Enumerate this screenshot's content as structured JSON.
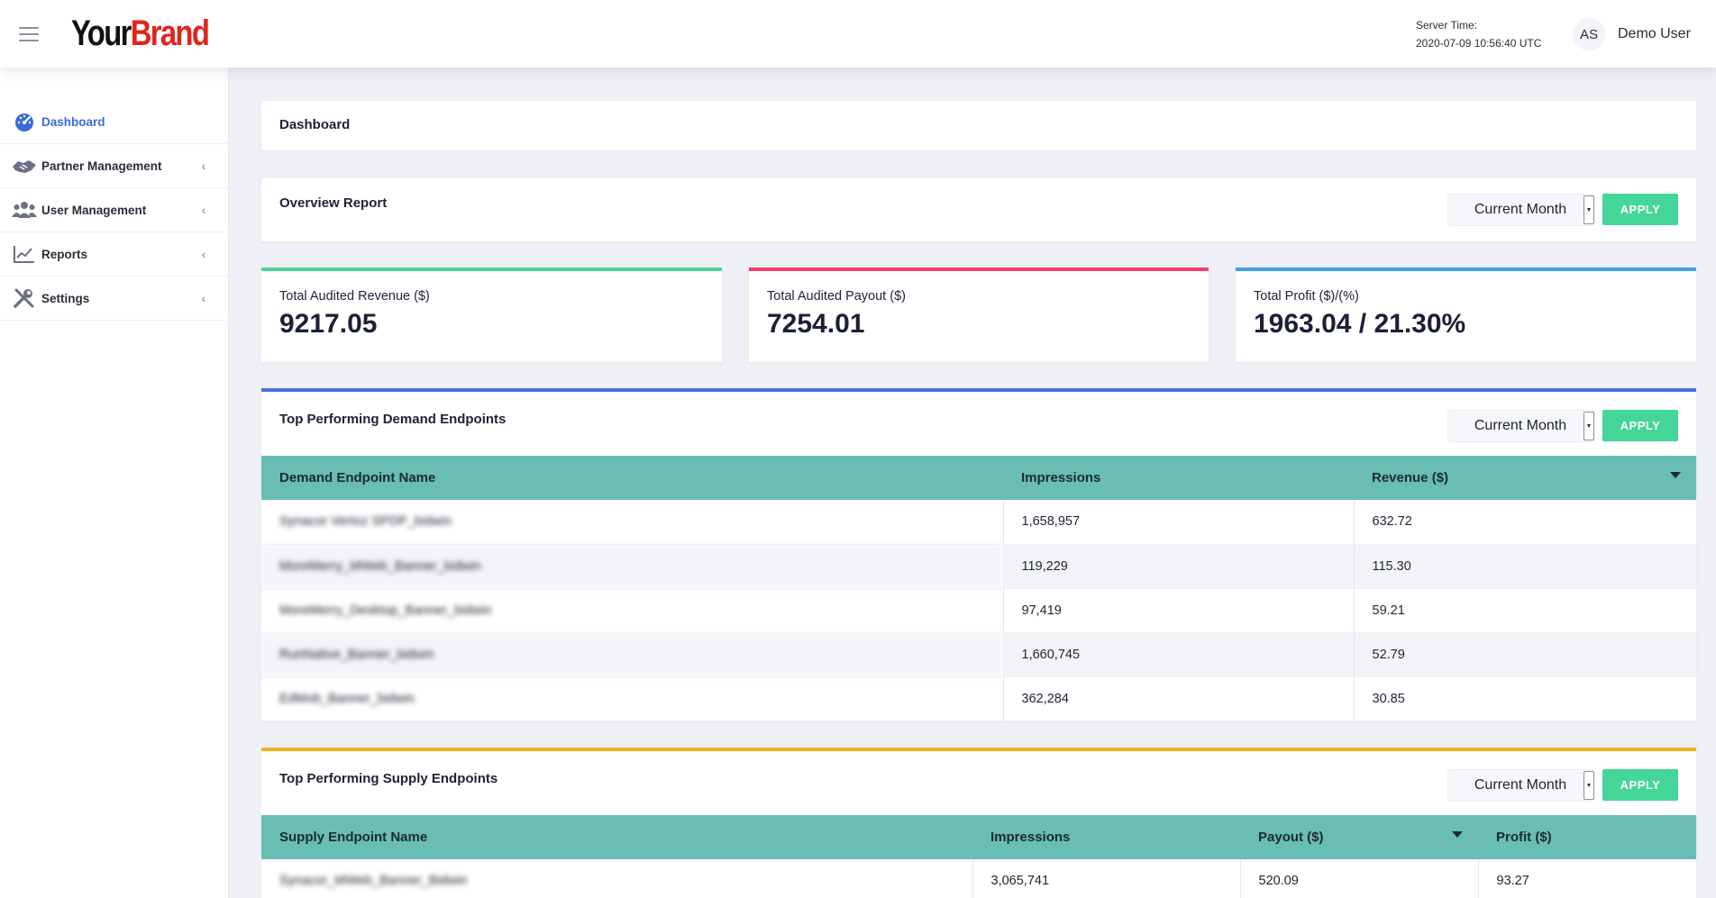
{
  "header": {
    "brand_part1": "Your",
    "brand_part2": "Brand",
    "server_time_label": "Server Time:",
    "server_time_value": "2020-07-09 10:56:40 UTC",
    "avatar_initials": "AS",
    "user_name": "Demo User"
  },
  "sidebar": {
    "items": [
      {
        "label": "Dashboard",
        "icon": "dashboard-gauge-icon",
        "active": true
      },
      {
        "label": "Partner Management",
        "icon": "handshake-icon"
      },
      {
        "label": "User Management",
        "icon": "users-icon"
      },
      {
        "label": "Reports",
        "icon": "chart-line-icon"
      },
      {
        "label": "Settings",
        "icon": "tools-icon"
      }
    ]
  },
  "page": {
    "title": "Dashboard"
  },
  "overview": {
    "title": "Overview Report",
    "period": "Current Month",
    "apply_label": "APPLY"
  },
  "kpis": [
    {
      "label": "Total Audited Revenue ($)",
      "value": "9217.05",
      "accent": "#4cd39c"
    },
    {
      "label": "Total Audited Payout ($)",
      "value": "7254.01",
      "accent": "#ef3f6e"
    },
    {
      "label": "Total Profit ($)/(%)",
      "value": "1963.04 / 21.30%",
      "accent": "#3ea0ec"
    }
  ],
  "demand": {
    "title": "Top Performing Demand Endpoints",
    "accent": "#4a6fe0",
    "period": "Current Month",
    "apply_label": "APPLY",
    "columns": [
      "Demand Endpoint Name",
      "Impressions",
      "Revenue ($)"
    ],
    "rows": [
      {
        "name": "Synacor Vertoz SPDP_bidwin",
        "impressions": "1,658,957",
        "revenue": "632.72"
      },
      {
        "name": "MoreMerry_MWeb_Banner_bidwin",
        "impressions": "119,229",
        "revenue": "115.30"
      },
      {
        "name": "MoreMerry_Desktop_Banner_bidwin",
        "impressions": "97,419",
        "revenue": "59.21"
      },
      {
        "name": "RunNative_Banner_bidwin",
        "impressions": "1,660,745",
        "revenue": "52.79"
      },
      {
        "name": "EdMob_Banner_bidwin",
        "impressions": "362,284",
        "revenue": "30.85"
      }
    ]
  },
  "supply": {
    "title": "Top Performing Supply Endpoints",
    "accent": "#f2b21d",
    "period": "Current Month",
    "apply_label": "APPLY",
    "columns": [
      "Supply Endpoint Name",
      "Impressions",
      "Payout ($)",
      "Profit ($)"
    ],
    "rows": [
      {
        "name": "Synacor_MWeb_Banner_Bidwin",
        "impressions": "3,065,741",
        "payout": "520.09",
        "profit": "93.27"
      }
    ]
  }
}
